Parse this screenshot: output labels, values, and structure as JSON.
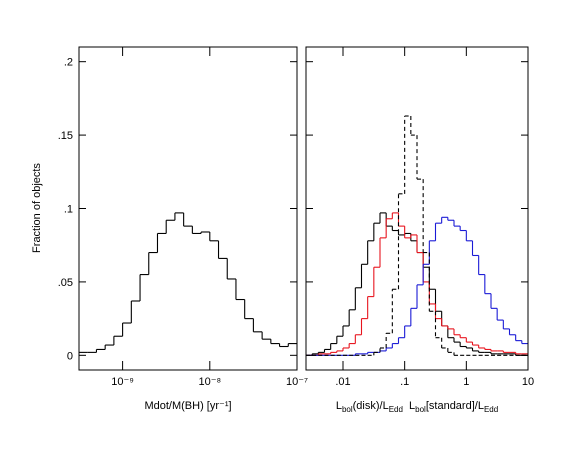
{
  "chart_data": [
    {
      "type": "histogram",
      "xscale": "log",
      "ylabel": "Fraction of objects",
      "xlabel": "Mdot/M(BH) [yr⁻¹]",
      "xlim": [
        3.162e-10,
        1e-07
      ],
      "ylim": [
        -0.01,
        0.21
      ],
      "xticks": [
        {
          "value": 1e-09,
          "label": "10⁻⁹"
        },
        {
          "value": 1e-08,
          "label": "10⁻⁸"
        },
        {
          "value": 1e-07,
          "label": "10⁻⁷"
        }
      ],
      "yticks": [
        0,
        {
          "value": 0.05,
          "label": ".05"
        },
        {
          "value": 0.1,
          "label": ".1"
        },
        {
          "value": 0.15,
          "label": ".15"
        },
        {
          "value": 0.2,
          "label": ".2"
        }
      ],
      "bins": [
        3.162e-10,
        3.981e-10,
        5.012e-10,
        6.31e-10,
        7.943e-10,
        1e-09,
        1.259e-09,
        1.585e-09,
        1.995e-09,
        2.512e-09,
        3.162e-09,
        3.981e-09,
        5.012e-09,
        6.31e-09,
        7.943e-09,
        1e-08,
        1.259e-08,
        1.585e-08,
        1.995e-08,
        2.512e-08,
        3.162e-08,
        3.981e-08,
        5.012e-08,
        6.31e-08,
        7.943e-08,
        1e-07
      ],
      "series": [
        {
          "color": "#000000",
          "dashed": false,
          "values": [
            0.002,
            0.002,
            0.004,
            0.007,
            0.013,
            0.022,
            0.037,
            0.055,
            0.07,
            0.083,
            0.092,
            0.097,
            0.088,
            0.083,
            0.084,
            0.078,
            0.066,
            0.052,
            0.038,
            0.025,
            0.016,
            0.011,
            0.008,
            0.006,
            0.008
          ]
        }
      ]
    },
    {
      "type": "histogram",
      "xscale": "log",
      "xlabel_parts": [
        {
          "text": "L",
          "sub": false
        },
        {
          "text": "bol",
          "sub": true
        },
        {
          "text": "(disk)/L",
          "sub": false
        },
        {
          "text": "Edd",
          "sub": true
        },
        {
          "text": "  L",
          "sub": false
        },
        {
          "text": "bol",
          "sub": true
        },
        {
          "text": "[standard]/L",
          "sub": false
        },
        {
          "text": "Edd",
          "sub": true
        }
      ],
      "xlim": [
        0.002512,
        10
      ],
      "ylim": [
        -0.01,
        0.21
      ],
      "xticks": [
        {
          "value": 0.01,
          "label": ".01"
        },
        {
          "value": 0.1,
          "label": ".1"
        },
        1,
        10
      ],
      "yticks": [
        0,
        0.05,
        0.1,
        0.15,
        0.2
      ],
      "bins": [
        0.002512,
        0.003162,
        0.003981,
        0.005012,
        0.00631,
        0.007943,
        0.01,
        0.01259,
        0.01585,
        0.01995,
        0.02512,
        0.03162,
        0.03981,
        0.05012,
        0.0631,
        0.07943,
        0.1,
        0.1259,
        0.1585,
        0.1995,
        0.2512,
        0.3162,
        0.3981,
        0.5012,
        0.631,
        0.7943,
        1,
        1.259,
        1.585,
        1.995,
        2.512,
        3.162,
        3.981,
        5.012,
        6.31,
        7.943,
        10
      ],
      "series": [
        {
          "color": "#000000",
          "dashed": false,
          "values": [
            0,
            0.001,
            0.002,
            0.004,
            0.008,
            0.013,
            0.02,
            0.031,
            0.046,
            0.062,
            0.078,
            0.09,
            0.097,
            0.088,
            0.085,
            0.082,
            0.083,
            0.078,
            0.07,
            0.06,
            0.045,
            0.03,
            0.02,
            0.012,
            0.009,
            0.006,
            0.005,
            0.003,
            0.002,
            0.002,
            0.001,
            0.001,
            0.001,
            0.001,
            0,
            0
          ]
        },
        {
          "color": "#e8141e",
          "dashed": false,
          "values": [
            0,
            0,
            0.001,
            0.001,
            0.002,
            0.003,
            0.005,
            0.008,
            0.014,
            0.025,
            0.04,
            0.06,
            0.08,
            0.093,
            0.097,
            0.088,
            0.08,
            0.082,
            0.07,
            0.05,
            0.035,
            0.025,
            0.02,
            0.018,
            0.014,
            0.012,
            0.009,
            0.007,
            0.005,
            0.004,
            0.003,
            0.003,
            0.002,
            0.002,
            0.001,
            0.001
          ]
        },
        {
          "color": "#1a1ad6",
          "dashed": false,
          "values": [
            0,
            0,
            0,
            0,
            0,
            0,
            0,
            0,
            0.001,
            0.001,
            0.002,
            0.002,
            0.003,
            0.005,
            0.008,
            0.012,
            0.02,
            0.032,
            0.048,
            0.062,
            0.078,
            0.09,
            0.094,
            0.092,
            0.088,
            0.085,
            0.078,
            0.068,
            0.055,
            0.042,
            0.032,
            0.024,
            0.018,
            0.014,
            0.01,
            0.008
          ]
        },
        {
          "color": "#000000",
          "dashed": true,
          "values": [
            0,
            0,
            0,
            0,
            0,
            0,
            0,
            0,
            0,
            0,
            0,
            0.002,
            0.005,
            0.015,
            0.045,
            0.11,
            0.163,
            0.15,
            0.12,
            0.07,
            0.03,
            0.012,
            0.005,
            0.002,
            0,
            0,
            0,
            0,
            0,
            0,
            0,
            0,
            0,
            0,
            0,
            0
          ]
        }
      ]
    }
  ]
}
